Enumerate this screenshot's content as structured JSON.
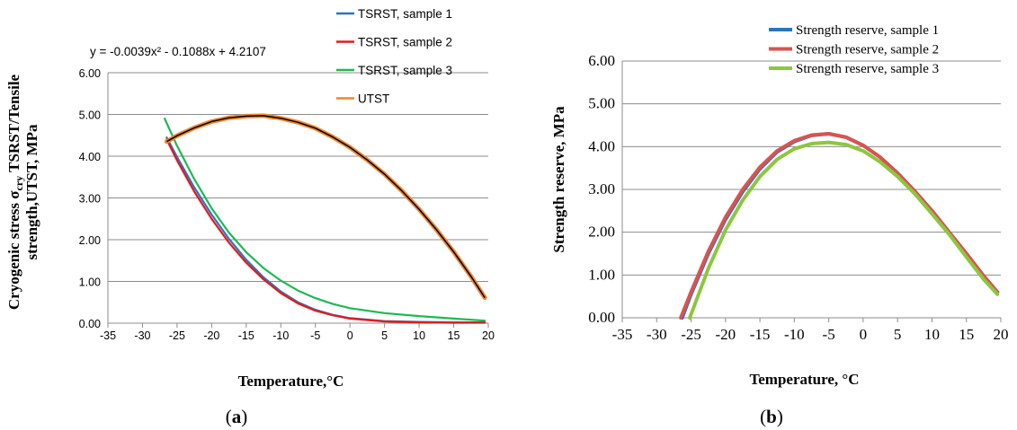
{
  "chart_data": [
    {
      "panel_label": "a",
      "type": "line",
      "xlabel": "Temperature,°C",
      "ylabel_line1_prefix": "Cryogenic stress σ",
      "ylabel_line1_sub": "cry",
      "ylabel_line1_suffix": " TSRST/Tensile",
      "ylabel_line2": "strength,UTST, MPa",
      "xlim": [
        -35,
        20
      ],
      "ylim": [
        0,
        6
      ],
      "xticks": [
        "-35",
        "-30",
        "-25",
        "-20",
        "-15",
        "-10",
        "-5",
        "0",
        "5",
        "10",
        "15",
        "20"
      ],
      "yticks": [
        "0.00",
        "1.00",
        "2.00",
        "3.00",
        "4.00",
        "5.00",
        "6.00"
      ],
      "grid": "horizontal",
      "legend_position": "top-right",
      "equation": "y = -0.0039x² - 0.1088x + 4.2107",
      "series": [
        {
          "name": "TSRST, sample 1",
          "color": "#2e75b6",
          "x": [
            -26.5,
            -25,
            -22.5,
            -20,
            -17.5,
            -15,
            -12.5,
            -10,
            -7.5,
            -5,
            -2.5,
            0,
            5,
            10,
            15,
            19.5
          ],
          "y": [
            4.45,
            3.98,
            3.25,
            2.6,
            2.02,
            1.52,
            1.1,
            0.76,
            0.5,
            0.32,
            0.2,
            0.12,
            0.05,
            0.03,
            0.02,
            0.02
          ]
        },
        {
          "name": "TSRST, sample 2",
          "color": "#e8171c",
          "x": [
            -26.5,
            -25,
            -22.5,
            -20,
            -17.5,
            -15,
            -12.5,
            -10,
            -7.5,
            -5,
            -2.5,
            0,
            5,
            10,
            15,
            19.5
          ],
          "y": [
            4.4,
            3.9,
            3.15,
            2.5,
            1.93,
            1.45,
            1.05,
            0.72,
            0.47,
            0.3,
            0.19,
            0.11,
            0.04,
            0.02,
            0.01,
            0.01
          ]
        },
        {
          "name": "TSRST, sample 3",
          "color": "#1db954",
          "x": [
            -26.8,
            -25,
            -22.5,
            -20,
            -17.5,
            -15,
            -12.5,
            -10,
            -7.5,
            -5,
            -2.5,
            0,
            5,
            10,
            15,
            19.5
          ],
          "y": [
            4.9,
            4.25,
            3.45,
            2.75,
            2.17,
            1.7,
            1.32,
            1.02,
            0.78,
            0.6,
            0.46,
            0.36,
            0.24,
            0.17,
            0.11,
            0.06
          ]
        },
        {
          "name": "UTST",
          "color": "#f0852d",
          "trend_color": "#000000",
          "x": [
            -26.5,
            -25,
            -22.5,
            -20,
            -17.5,
            -15,
            -12.5,
            -10,
            -7.5,
            -5,
            -2.5,
            0,
            2.5,
            5,
            7.5,
            10,
            12.5,
            15,
            17.5,
            19.5
          ],
          "y": [
            4.35,
            4.49,
            4.68,
            4.83,
            4.92,
            4.96,
            4.97,
            4.91,
            4.81,
            4.67,
            4.46,
            4.21,
            3.91,
            3.57,
            3.17,
            2.73,
            2.24,
            1.71,
            1.12,
            0.61
          ]
        }
      ]
    },
    {
      "panel_label": "b",
      "type": "line",
      "xlabel": "Temperature, °C",
      "ylabel": "Strength reserve, MPa",
      "xlim": [
        -35,
        20
      ],
      "ylim": [
        0,
        6
      ],
      "xticks": [
        "-35",
        "-30",
        "-25",
        "-20",
        "-15",
        "-10",
        "-5",
        "0",
        "5",
        "10",
        "15",
        "20"
      ],
      "yticks": [
        "0.00",
        "1.00",
        "2.00",
        "3.00",
        "4.00",
        "5.00",
        "6.00"
      ],
      "grid": "horizontal",
      "legend_position": "top-right",
      "series": [
        {
          "name": "Strength reserve, sample 1",
          "color": "#2e75b6",
          "x": [
            -26.3,
            -25,
            -22.5,
            -20,
            -17.5,
            -15,
            -12.5,
            -10,
            -7.5,
            -5,
            -2.5,
            0,
            2.5,
            5,
            7.5,
            10,
            12.5,
            15,
            17.5,
            19.5
          ],
          "y": [
            0.0,
            0.55,
            1.5,
            2.3,
            2.95,
            3.48,
            3.88,
            4.12,
            4.26,
            4.3,
            4.22,
            4.03,
            3.75,
            3.38,
            2.96,
            2.5,
            2.0,
            1.5,
            0.98,
            0.6
          ]
        },
        {
          "name": "Strength reserve, sample 2",
          "color": "#d9534f",
          "x": [
            -26.5,
            -25,
            -22.5,
            -20,
            -17.5,
            -15,
            -12.5,
            -10,
            -7.5,
            -5,
            -2.5,
            0,
            2.5,
            5,
            7.5,
            10,
            12.5,
            15,
            17.5,
            19.5
          ],
          "y": [
            0.0,
            0.6,
            1.55,
            2.35,
            3.0,
            3.52,
            3.9,
            4.14,
            4.27,
            4.3,
            4.22,
            4.03,
            3.75,
            3.38,
            2.96,
            2.5,
            2.0,
            1.5,
            0.98,
            0.6
          ]
        },
        {
          "name": "Strength reserve, sample 3",
          "color": "#8dc63f",
          "x": [
            -25.2,
            -25,
            -22.5,
            -20,
            -17.5,
            -15,
            -12.5,
            -10,
            -7.5,
            -5,
            -2.5,
            0,
            2.5,
            5,
            7.5,
            10,
            12.5,
            15,
            17.5,
            19.5
          ],
          "y": [
            0.0,
            0.08,
            1.15,
            2.05,
            2.75,
            3.3,
            3.7,
            3.95,
            4.07,
            4.1,
            4.05,
            3.9,
            3.64,
            3.3,
            2.9,
            2.43,
            1.95,
            1.42,
            0.9,
            0.55
          ]
        }
      ]
    }
  ]
}
